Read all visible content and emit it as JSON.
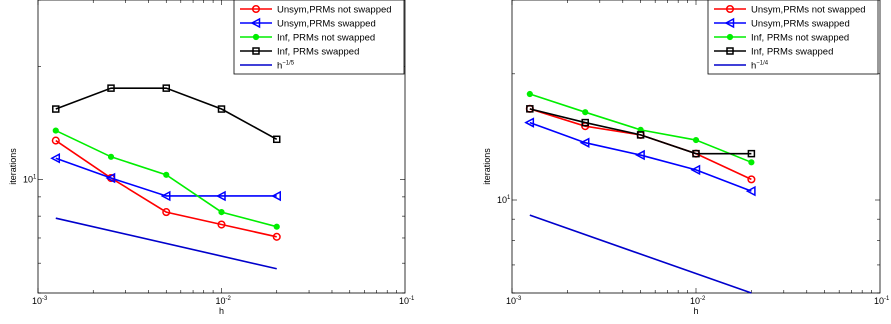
{
  "chart_data": [
    {
      "type": "line",
      "xlabel": "h",
      "ylabel": "iterations",
      "xscale": "log",
      "yscale": "log",
      "xlim": [
        0.001,
        0.1
      ],
      "ylim": [
        5,
        30
      ],
      "x_ticks": [
        {
          "base": "10",
          "exp": "-3"
        },
        {
          "base": "10",
          "exp": "-2"
        },
        {
          "base": "10",
          "exp": "-1"
        }
      ],
      "y_ticks": [
        {
          "base": "10",
          "exp": "1"
        }
      ],
      "grid": false,
      "legend": "top-right",
      "series": [
        {
          "name": "Unsym,PRMs not swapped",
          "color": "#ff0000",
          "marker": "circle",
          "x": [
            0.00125,
            0.0025,
            0.005,
            0.01,
            0.02
          ],
          "y": [
            12.7,
            10.1,
            8.2,
            7.6,
            7.05
          ]
        },
        {
          "name": "Unsym,PRMs swapped",
          "color": "#0000ff",
          "marker": "triangle-left",
          "x": [
            0.00125,
            0.0025,
            0.005,
            0.01,
            0.02
          ],
          "y": [
            11.4,
            10.1,
            9.05,
            9.05,
            9.05
          ]
        },
        {
          "name": "Inf, PRMs not swapped",
          "color": "#00ee00",
          "marker": "dot",
          "x": [
            0.00125,
            0.0025,
            0.005,
            0.01,
            0.02
          ],
          "y": [
            13.5,
            11.5,
            10.3,
            8.2,
            7.5
          ]
        },
        {
          "name": "Inf, PRMs swapped",
          "color": "#000000",
          "marker": "square",
          "x": [
            0.00125,
            0.0025,
            0.005,
            0.01,
            0.02
          ],
          "y": [
            15.4,
            17.5,
            17.5,
            15.4,
            12.8
          ]
        },
        {
          "name": "h",
          "name_sup": "−1/5",
          "color": "#0000cc",
          "marker": "none",
          "x": [
            0.00125,
            0.02
          ],
          "y": [
            7.9,
            5.8
          ]
        }
      ]
    },
    {
      "type": "line",
      "xlabel": "h",
      "ylabel": "iterations",
      "xscale": "log",
      "yscale": "log",
      "xlim": [
        0.001,
        0.1
      ],
      "ylim": [
        6,
        30
      ],
      "x_ticks": [
        {
          "base": "10",
          "exp": "-3"
        },
        {
          "base": "10",
          "exp": "-2"
        },
        {
          "base": "10",
          "exp": "-1"
        }
      ],
      "y_ticks": [
        {
          "base": "10",
          "exp": "1"
        }
      ],
      "grid": false,
      "legend": "top-right",
      "series": [
        {
          "name": "Unsym,PRMs not swapped",
          "color": "#ff0000",
          "marker": "circle",
          "x": [
            0.00125,
            0.0025,
            0.005,
            0.01,
            0.02
          ],
          "y": [
            16.5,
            15.0,
            14.3,
            12.9,
            11.2
          ]
        },
        {
          "name": "Unsym,PRMs swapped",
          "color": "#0000ff",
          "marker": "triangle-left",
          "x": [
            0.00125,
            0.0025,
            0.005,
            0.01,
            0.02
          ],
          "y": [
            15.3,
            13.7,
            12.8,
            11.8,
            10.5
          ]
        },
        {
          "name": "Inf, PRMs not swapped",
          "color": "#00ee00",
          "marker": "dot",
          "x": [
            0.00125,
            0.0025,
            0.005,
            0.01,
            0.02
          ],
          "y": [
            17.9,
            16.2,
            14.7,
            13.9,
            12.3
          ]
        },
        {
          "name": "Inf, PRMs swapped",
          "color": "#000000",
          "marker": "square",
          "x": [
            0.00125,
            0.0025,
            0.005,
            0.01,
            0.02
          ],
          "y": [
            16.5,
            15.3,
            14.3,
            12.9,
            12.9
          ]
        },
        {
          "name": "h",
          "name_sup": "−1/4",
          "color": "#0000cc",
          "marker": "none",
          "x": [
            0.00125,
            0.02
          ],
          "y": [
            9.2,
            6.0
          ]
        }
      ]
    }
  ]
}
